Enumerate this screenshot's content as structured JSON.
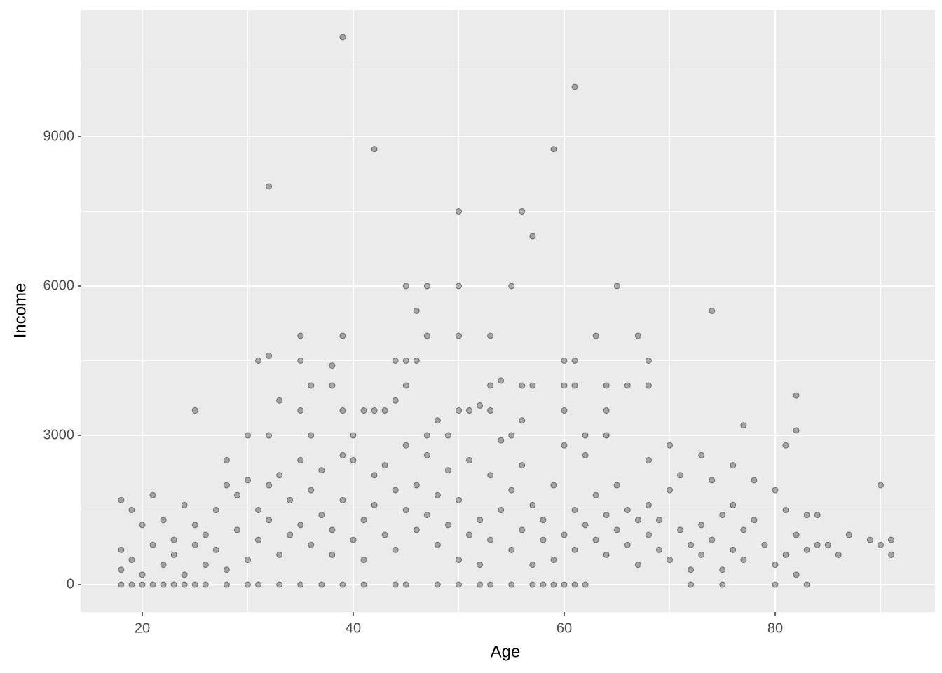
{
  "chart_data": {
    "type": "scatter",
    "x_label": "Age",
    "y_label": "Income",
    "xlim": [
      14.22,
      95.15
    ],
    "ylim": [
      -549,
      11549
    ],
    "xticks": [
      20,
      40,
      60,
      80
    ],
    "yticks": [
      0,
      3000,
      6000,
      9000
    ],
    "xminor": [
      30,
      50,
      70,
      90
    ],
    "yminor": [
      1500,
      4500,
      7500,
      10500
    ],
    "grid": true,
    "color": "#000000",
    "x": [
      39,
      61,
      42,
      59,
      32,
      50,
      56,
      57,
      45,
      47,
      50,
      55,
      65,
      46,
      74,
      35,
      39,
      47,
      50,
      53,
      63,
      67,
      32,
      31,
      35,
      45,
      44,
      46,
      60,
      61,
      68,
      38,
      54,
      36,
      38,
      45,
      53,
      56,
      57,
      60,
      61,
      64,
      66,
      68,
      82,
      33,
      44,
      52,
      25,
      35,
      39,
      41,
      42,
      43,
      50,
      51,
      53,
      60,
      64,
      77,
      82,
      30,
      32,
      36,
      40,
      47,
      55,
      62,
      64,
      70,
      81,
      73,
      76,
      78,
      90,
      74,
      68,
      28,
      48,
      49,
      56,
      18,
      19,
      20,
      21,
      22,
      23,
      24,
      25,
      26,
      28,
      30,
      31,
      33,
      35,
      37,
      39,
      41,
      44,
      45,
      48,
      50,
      52,
      53,
      55,
      57,
      58,
      59,
      60,
      61,
      62,
      72,
      75,
      80,
      83,
      18,
      18,
      18,
      19,
      19,
      20,
      20,
      21,
      21,
      22,
      22,
      23,
      23,
      24,
      24,
      25,
      25,
      26,
      26,
      27,
      27,
      28,
      28,
      29,
      29,
      30,
      30,
      31,
      31,
      32,
      32,
      33,
      33,
      34,
      34,
      35,
      35,
      36,
      36,
      37,
      37,
      38,
      38,
      39,
      39,
      40,
      40,
      41,
      41,
      42,
      42,
      43,
      43,
      44,
      44,
      45,
      45,
      46,
      46,
      47,
      47,
      48,
      48,
      49,
      49,
      50,
      50,
      51,
      51,
      52,
      52,
      53,
      53,
      54,
      54,
      55,
      55,
      56,
      56,
      57,
      57,
      58,
      58,
      59,
      59,
      60,
      60,
      61,
      61,
      62,
      62,
      63,
      63,
      64,
      64,
      65,
      65,
      66,
      66,
      67,
      67,
      68,
      68,
      69,
      69,
      70,
      70,
      71,
      71,
      72,
      72,
      73,
      73,
      74,
      75,
      75,
      76,
      76,
      77,
      77,
      78,
      79,
      80,
      80,
      81,
      81,
      82,
      82,
      83,
      83,
      84,
      84,
      85,
      86,
      87,
      89,
      90,
      91,
      91
    ],
    "y": [
      11000,
      10000,
      8750,
      8750,
      8000,
      7500,
      7500,
      7000,
      6000,
      6000,
      6000,
      6000,
      6000,
      5500,
      5500,
      5000,
      5000,
      5000,
      5000,
      5000,
      5000,
      5000,
      4600,
      4500,
      4500,
      4500,
      4500,
      4500,
      4500,
      4500,
      4500,
      4400,
      4100,
      4000,
      4000,
      4000,
      4000,
      4000,
      4000,
      4000,
      4000,
      4000,
      4000,
      4000,
      3800,
      3700,
      3700,
      3600,
      3500,
      3500,
      3500,
      3500,
      3500,
      3500,
      3500,
      3500,
      3500,
      3500,
      3500,
      3200,
      3100,
      3000,
      3000,
      3000,
      3000,
      3000,
      3000,
      3000,
      3000,
      2800,
      2800,
      2600,
      2400,
      2100,
      2000,
      2100,
      2500,
      2500,
      3300,
      3000,
      3300,
      0,
      0,
      0,
      0,
      0,
      0,
      0,
      0,
      0,
      0,
      0,
      0,
      0,
      0,
      0,
      0,
      0,
      0,
      0,
      0,
      0,
      0,
      0,
      0,
      0,
      0,
      0,
      0,
      0,
      0,
      0,
      0,
      0,
      0,
      300,
      700,
      1700,
      500,
      1500,
      1200,
      200,
      800,
      1800,
      400,
      1300,
      900,
      600,
      1600,
      200,
      1200,
      800,
      1000,
      400,
      1500,
      700,
      2000,
      300,
      1100,
      1800,
      2100,
      500,
      1500,
      900,
      2000,
      1300,
      2200,
      600,
      1700,
      1000,
      2500,
      1200,
      800,
      1900,
      1400,
      2300,
      1100,
      600,
      2600,
      1700,
      900,
      2500,
      1300,
      500,
      2200,
      1600,
      1000,
      2400,
      1900,
      700,
      1500,
      2800,
      2000,
      1100,
      1400,
      2600,
      800,
      1800,
      1200,
      2300,
      500,
      1700,
      1000,
      2500,
      1300,
      400,
      2200,
      900,
      1500,
      2900,
      1900,
      700,
      1100,
      2400,
      1600,
      400,
      900,
      1300,
      500,
      2000,
      1000,
      2800,
      700,
      1500,
      1200,
      2600,
      900,
      1800,
      1400,
      600,
      1100,
      2000,
      800,
      1500,
      1300,
      400,
      1000,
      1600,
      700,
      1300,
      1900,
      500,
      1100,
      2200,
      800,
      300,
      1200,
      600,
      900,
      1400,
      300,
      700,
      1600,
      1100,
      500,
      1300,
      800,
      1900,
      400,
      1500,
      600,
      1000,
      200,
      1400,
      700,
      1400,
      800,
      800,
      600,
      1000,
      900,
      800,
      900,
      600
    ]
  }
}
